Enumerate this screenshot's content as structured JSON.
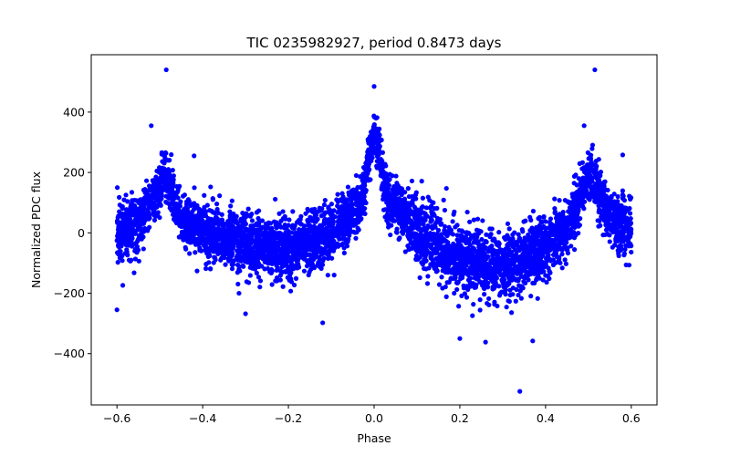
{
  "chart_data": {
    "type": "scatter",
    "title": "TIC 0235982927, period 0.8473 days",
    "xlabel": "Phase",
    "ylabel": "Normalized PDC flux",
    "xlim": [
      -0.66,
      0.66
    ],
    "ylim": [
      -570,
      590
    ],
    "xticks": [
      -0.6,
      -0.4,
      -0.2,
      0.0,
      0.2,
      0.4,
      0.6
    ],
    "xtick_labels": [
      "−0.6",
      "−0.4",
      "−0.2",
      "0.0",
      "0.2",
      "0.4",
      "0.6"
    ],
    "yticks": [
      -400,
      -200,
      0,
      200,
      400
    ],
    "ytick_labels": [
      "−400",
      "−200",
      "0",
      "200",
      "400"
    ],
    "grid": false,
    "marker_color": "#0000ff",
    "series": [
      {
        "name": "PDC flux",
        "envelope": {
          "phase": [
            -0.6,
            -0.55,
            -0.5,
            -0.49,
            -0.45,
            -0.4,
            -0.3,
            -0.2,
            -0.1,
            -0.03,
            0.0,
            0.03,
            0.1,
            0.2,
            0.3,
            0.4,
            0.45,
            0.49,
            0.5,
            0.55,
            0.6
          ],
          "center": [
            0,
            30,
            150,
            200,
            40,
            10,
            -40,
            -60,
            -10,
            100,
            340,
            120,
            0,
            -80,
            -120,
            -50,
            20,
            150,
            200,
            60,
            0
          ],
          "spread": [
            110,
            90,
            80,
            80,
            85,
            95,
            100,
            100,
            95,
            80,
            70,
            80,
            100,
            110,
            110,
            100,
            90,
            80,
            80,
            90,
            110
          ]
        },
        "outliers": [
          {
            "x": -0.485,
            "y": 540
          },
          {
            "x": 0.515,
            "y": 540
          },
          {
            "x": 0.34,
            "y": -525
          },
          {
            "x": -0.12,
            "y": -298
          },
          {
            "x": -0.3,
            "y": -268
          },
          {
            "x": 0.2,
            "y": -350
          },
          {
            "x": 0.37,
            "y": -358
          },
          {
            "x": 0.26,
            "y": -362
          },
          {
            "x": -0.6,
            "y": -255
          },
          {
            "x": -0.52,
            "y": 355
          },
          {
            "x": 0.49,
            "y": 355
          },
          {
            "x": 0.0,
            "y": 485
          },
          {
            "x": 0.58,
            "y": 258
          },
          {
            "x": -0.42,
            "y": 255
          }
        ]
      }
    ]
  }
}
